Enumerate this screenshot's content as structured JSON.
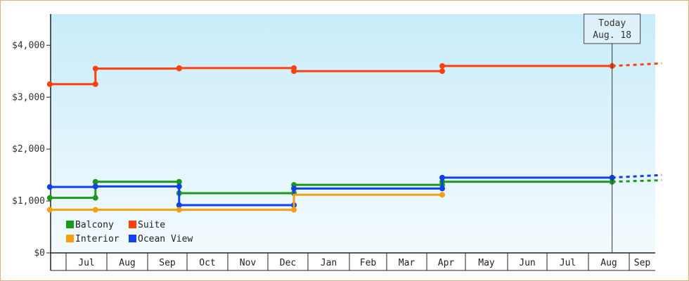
{
  "chart_data": {
    "type": "line",
    "step": true,
    "title": "",
    "xlabel": "",
    "ylabel": "",
    "ylim": [
      0,
      4600
    ],
    "y_ticks": [
      0,
      1000,
      2000,
      3000,
      4000
    ],
    "y_tick_labels": [
      "$0",
      "$1,000",
      "$2,000",
      "$3,000",
      "$4,000"
    ],
    "x_months": [
      "Jul",
      "Aug",
      "Sep",
      "Oct",
      "Nov",
      "Dec",
      "Jan",
      "Feb",
      "Mar",
      "Apr",
      "May",
      "Jun",
      "Jul",
      "Aug",
      "Sep"
    ],
    "today_marker": {
      "line1": "Today",
      "line2": "Aug. 18",
      "position": 13.58
    },
    "grid": false,
    "legend": {
      "position": "bottom-left",
      "entries": [
        {
          "label": "Balcony",
          "color": "#1a9a1a"
        },
        {
          "label": "Suite",
          "color": "#ff4010"
        },
        {
          "label": "Interior",
          "color": "#f5a010"
        },
        {
          "label": "Ocean View",
          "color": "#1040f0"
        }
      ]
    },
    "series": [
      {
        "name": "Suite",
        "color": "#ff4010",
        "points": [
          [
            -0.4,
            3250
          ],
          [
            0.72,
            3250
          ],
          [
            0.72,
            3550
          ],
          [
            2.8,
            3550
          ],
          [
            2.8,
            3560
          ],
          [
            5.65,
            3560
          ],
          [
            5.65,
            3500
          ],
          [
            9.4,
            3500
          ],
          [
            9.4,
            3600
          ],
          [
            13.58,
            3600
          ]
        ],
        "markers": [
          [
            -0.4,
            3250
          ],
          [
            0.72,
            3250
          ],
          [
            0.72,
            3550
          ],
          [
            2.8,
            3550
          ],
          [
            2.8,
            3560
          ],
          [
            5.65,
            3560
          ],
          [
            5.65,
            3500
          ],
          [
            9.4,
            3500
          ],
          [
            9.4,
            3600
          ],
          [
            13.58,
            3600
          ]
        ],
        "projection": [
          [
            13.58,
            3600
          ],
          [
            15.25,
            3650
          ]
        ]
      },
      {
        "name": "Balcony",
        "color": "#1a9a1a",
        "points": [
          [
            -0.4,
            1060
          ],
          [
            0.72,
            1060
          ],
          [
            0.72,
            1370
          ],
          [
            2.8,
            1370
          ],
          [
            2.8,
            1150
          ],
          [
            5.65,
            1150
          ],
          [
            5.65,
            1310
          ],
          [
            9.4,
            1310
          ],
          [
            9.4,
            1370
          ],
          [
            13.58,
            1370
          ]
        ],
        "markers": [
          [
            -0.4,
            1060
          ],
          [
            0.72,
            1060
          ],
          [
            0.72,
            1370
          ],
          [
            2.8,
            1370
          ],
          [
            2.8,
            1150
          ],
          [
            5.65,
            1150
          ],
          [
            5.65,
            1310
          ],
          [
            9.4,
            1310
          ],
          [
            9.4,
            1370
          ],
          [
            13.58,
            1370
          ]
        ],
        "projection": [
          [
            13.58,
            1370
          ],
          [
            15.25,
            1400
          ]
        ]
      },
      {
        "name": "Ocean View",
        "color": "#1040f0",
        "points": [
          [
            -0.4,
            1270
          ],
          [
            0.72,
            1270
          ],
          [
            0.72,
            1280
          ],
          [
            2.8,
            1280
          ],
          [
            2.8,
            920
          ],
          [
            5.65,
            920
          ],
          [
            5.65,
            1240
          ],
          [
            9.4,
            1240
          ],
          [
            9.4,
            1450
          ],
          [
            13.58,
            1450
          ]
        ],
        "markers": [
          [
            -0.4,
            1270
          ],
          [
            0.72,
            1280
          ],
          [
            2.8,
            1280
          ],
          [
            2.8,
            920
          ],
          [
            5.65,
            920
          ],
          [
            5.65,
            1240
          ],
          [
            9.4,
            1240
          ],
          [
            9.4,
            1450
          ],
          [
            13.58,
            1450
          ]
        ],
        "projection": [
          [
            13.58,
            1450
          ],
          [
            15.25,
            1500
          ]
        ]
      },
      {
        "name": "Interior",
        "color": "#f5a010",
        "points": [
          [
            -0.4,
            830
          ],
          [
            0.72,
            830
          ],
          [
            2.8,
            830
          ],
          [
            5.65,
            830
          ],
          [
            5.65,
            1120
          ],
          [
            9.4,
            1120
          ]
        ],
        "markers": [
          [
            -0.4,
            830
          ],
          [
            0.72,
            830
          ],
          [
            2.8,
            830
          ],
          [
            5.65,
            830
          ],
          [
            9.4,
            1120
          ]
        ],
        "projection": []
      }
    ]
  }
}
